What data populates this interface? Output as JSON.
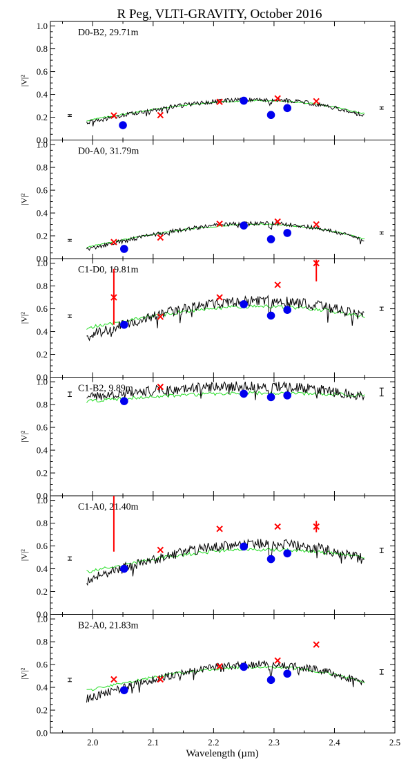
{
  "title": "R Peg, VLTI-GRAVITY, October 2016",
  "xlabel": "Wavelength (µm)",
  "ylabel": "|V|²",
  "x_ticks": [
    "2.0",
    "2.1",
    "2.2",
    "2.3",
    "2.4",
    "2.5"
  ],
  "y_ticks": [
    "0.0",
    "0.2",
    "0.4",
    "0.6",
    "0.8",
    "1.0"
  ],
  "colors": {
    "observed": "#000000",
    "model": "#22dd22",
    "blue_points": "#0000ee",
    "red_crosses": "#ff0000"
  },
  "chart_data": [
    {
      "type": "line",
      "label": "D0-B2, 29.71m",
      "xlim": [
        1.93,
        2.5
      ],
      "ylim": [
        0.0,
        1.04
      ],
      "obs_start": 0.15,
      "obs_end": 0.21,
      "obs_peak": 0.355,
      "model_start": 0.17,
      "model_end": 0.23,
      "model_peak": 0.345,
      "noise": 0.018,
      "blue_points": [
        [
          2.05,
          0.13
        ],
        [
          2.25,
          0.345
        ],
        [
          2.295,
          0.22
        ],
        [
          2.322,
          0.28
        ]
      ],
      "red_crosses": [
        [
          2.035,
          0.215
        ],
        [
          2.112,
          0.218
        ],
        [
          2.21,
          0.335
        ],
        [
          2.306,
          0.365
        ],
        [
          2.37,
          0.34
        ]
      ],
      "red_bars": [],
      "left_err": {
        "x": 1.962,
        "y": 0.215,
        "half": 0.008
      },
      "right_err": {
        "x": 2.478,
        "y": 0.28,
        "half": 0.01
      }
    },
    {
      "type": "line",
      "label": "D0-A0, 31.79m",
      "xlim": [
        1.93,
        2.5
      ],
      "ylim": [
        0.0,
        1.04
      ],
      "obs_start": 0.08,
      "obs_end": 0.16,
      "obs_peak": 0.31,
      "model_start": 0.1,
      "model_end": 0.17,
      "model_peak": 0.3,
      "noise": 0.018,
      "blue_points": [
        [
          2.052,
          0.085
        ],
        [
          2.25,
          0.29
        ],
        [
          2.295,
          0.17
        ],
        [
          2.322,
          0.225
        ]
      ],
      "red_crosses": [
        [
          2.035,
          0.145
        ],
        [
          2.112,
          0.185
        ],
        [
          2.21,
          0.305
        ],
        [
          2.306,
          0.325
        ],
        [
          2.37,
          0.3
        ]
      ],
      "red_bars": [],
      "left_err": {
        "x": 1.962,
        "y": 0.16,
        "half": 0.008
      },
      "right_err": {
        "x": 2.478,
        "y": 0.225,
        "half": 0.01
      }
    },
    {
      "type": "line",
      "label": "C1-D0, 19.81m",
      "xlim": [
        1.93,
        2.5
      ],
      "ylim": [
        0.0,
        1.04
      ],
      "obs_start": 0.36,
      "obs_end": 0.53,
      "obs_peak": 0.67,
      "model_start": 0.43,
      "model_end": 0.53,
      "model_peak": 0.62,
      "noise": 0.045,
      "blue_points": [
        [
          2.052,
          0.46
        ],
        [
          2.25,
          0.64
        ],
        [
          2.295,
          0.54
        ],
        [
          2.322,
          0.59
        ]
      ],
      "red_crosses": [
        [
          2.035,
          0.7
        ],
        [
          2.112,
          0.53
        ],
        [
          2.21,
          0.7
        ],
        [
          2.306,
          0.81
        ],
        [
          2.37,
          1.0
        ]
      ],
      "red_bars": [
        [
          2.035,
          0.46,
          0.95
        ],
        [
          2.37,
          0.84,
          1.03
        ]
      ],
      "left_err": {
        "x": 1.962,
        "y": 0.535,
        "half": 0.012
      },
      "right_err": {
        "x": 2.478,
        "y": 0.6,
        "half": 0.015
      }
    },
    {
      "type": "line",
      "label": "C1-B2, 9.89m",
      "xlim": [
        1.93,
        2.5
      ],
      "ylim": [
        0.0,
        1.04
      ],
      "obs_start": 0.87,
      "obs_end": 0.86,
      "obs_peak": 0.96,
      "model_start": 0.83,
      "model_end": 0.88,
      "model_peak": 0.9,
      "noise": 0.045,
      "blue_points": [
        [
          2.052,
          0.83
        ],
        [
          2.25,
          0.895
        ],
        [
          2.295,
          0.865
        ],
        [
          2.322,
          0.88
        ]
      ],
      "red_crosses": [
        [
          2.112,
          0.955
        ]
      ],
      "red_bars": [],
      "left_err": {
        "x": 1.962,
        "y": 0.89,
        "half": 0.02
      },
      "right_err": {
        "x": 2.478,
        "y": 0.91,
        "half": 0.035
      }
    },
    {
      "type": "line",
      "label": "C1-A0, 21.40m",
      "xlim": [
        1.93,
        2.5
      ],
      "ylim": [
        0.0,
        1.04
      ],
      "obs_start": 0.3,
      "obs_end": 0.48,
      "obs_peak": 0.62,
      "model_start": 0.37,
      "model_end": 0.5,
      "model_peak": 0.57,
      "noise": 0.045,
      "blue_points": [
        [
          2.052,
          0.4
        ],
        [
          2.25,
          0.595
        ],
        [
          2.295,
          0.485
        ],
        [
          2.322,
          0.535
        ]
      ],
      "red_crosses": [
        [
          2.112,
          0.565
        ],
        [
          2.21,
          0.75
        ],
        [
          2.306,
          0.77
        ],
        [
          2.37,
          0.77
        ]
      ],
      "red_bars": [
        [
          2.035,
          0.55,
          1.04
        ],
        [
          2.37,
          0.72,
          0.82
        ]
      ],
      "left_err": {
        "x": 1.962,
        "y": 0.49,
        "half": 0.015
      },
      "right_err": {
        "x": 2.478,
        "y": 0.56,
        "half": 0.02
      }
    },
    {
      "type": "line",
      "label": "B2-A0, 21.83m",
      "xlim": [
        1.93,
        2.5
      ],
      "ylim": [
        0.0,
        1.04
      ],
      "obs_start": 0.3,
      "obs_end": 0.43,
      "obs_peak": 0.6,
      "model_start": 0.37,
      "model_end": 0.44,
      "model_peak": 0.58,
      "noise": 0.035,
      "blue_points": [
        [
          2.052,
          0.375
        ],
        [
          2.25,
          0.58
        ],
        [
          2.295,
          0.465
        ],
        [
          2.322,
          0.52
        ]
      ],
      "red_crosses": [
        [
          2.035,
          0.47
        ],
        [
          2.112,
          0.47
        ],
        [
          2.21,
          0.585
        ],
        [
          2.306,
          0.635
        ],
        [
          2.37,
          0.775
        ]
      ],
      "red_bars": [],
      "left_err": {
        "x": 1.962,
        "y": 0.465,
        "half": 0.015
      },
      "right_err": {
        "x": 2.478,
        "y": 0.535,
        "half": 0.02
      }
    }
  ]
}
